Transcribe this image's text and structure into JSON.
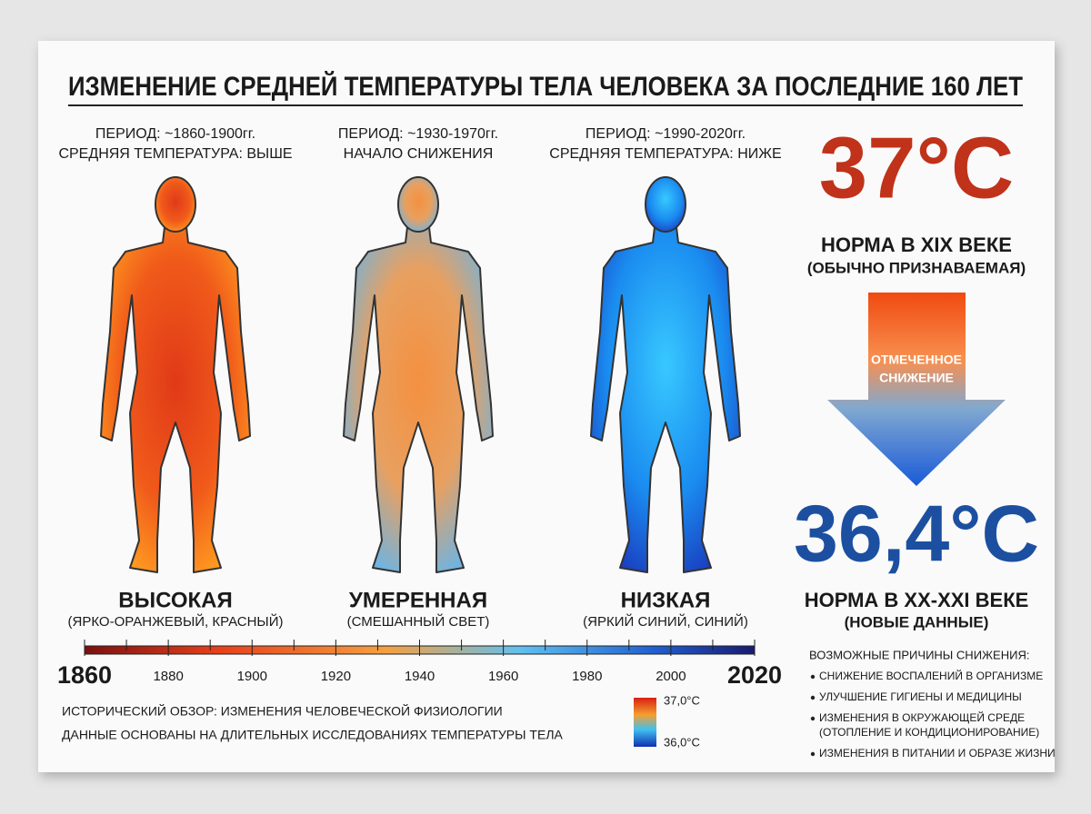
{
  "header": {
    "title": "ИЗМЕНЕНИЕ СРЕДНЕЙ ТЕМПЕРАТУРЫ ТЕЛА ЧЕЛОВЕКА ЗА ПОСЛЕДНИЕ 160 ЛЕТ"
  },
  "panels": [
    {
      "period": "ПЕРИОД: ~1860-1900гг.",
      "note": "СРЕДНЯЯ ТЕМПЕРАТУРА: ВЫШЕ",
      "label": "ВЫСОКАЯ",
      "sublabel": "(ЯРКО-ОРАНЖЕВЫЙ, КРАСНЫЙ)"
    },
    {
      "period": "ПЕРИОД: ~1930-1970гг.",
      "note": "НАЧАЛО СНИЖЕНИЯ",
      "label": "УМЕРЕННАЯ",
      "sublabel": "(СМЕШАННЫЙ СВЕТ)"
    },
    {
      "period": "ПЕРИОД: ~1990-2020гг.",
      "note": "СРЕДНЯЯ ТЕМПЕРАТУРА: НИЖЕ",
      "label": "НИЗКАЯ",
      "sublabel": "(ЯРКИЙ СИНИЙ, СИНИЙ)"
    }
  ],
  "timeline": {
    "years": [
      1860,
      1880,
      1900,
      1920,
      1940,
      1960,
      1980,
      2000,
      2020
    ]
  },
  "footer": {
    "lines": [
      "ИСТОРИЧЕСКИЙ ОБЗОР: ИЗМЕНЕНИЯ ЧЕЛОВЕЧЕСКОЙ ФИЗИОЛОГИИ",
      "ДАННЫЕ ОСНОВАНЫ НА ДЛИТЕЛЬНЫХ ИССЛЕДОВАНИЯХ ТЕМПЕРАТУРЫ ТЕЛА"
    ]
  },
  "legend": {
    "max": "37,0°C",
    "min": "36,0°C"
  },
  "sidebar": {
    "old_temp": "37°C",
    "old_norm": "НОРМА В XIX ВЕКЕ",
    "old_note": "(ОБЫЧНО ПРИЗНАВАЕМАЯ)",
    "arrow_lines": [
      "ОТМЕЧЕННОЕ",
      "СНИЖЕНИЕ"
    ],
    "new_temp": "36,4°C",
    "new_norm": "НОРМА В XX-XXI ВЕКЕ",
    "new_note": "(НОВЫЕ ДАННЫЕ)",
    "causes_title": "ВОЗМОЖНЫЕ ПРИЧИНЫ СНИЖЕНИЯ:",
    "causes": [
      [
        "СНИЖЕНИЕ ВОСПАЛЕНИЙ В ОРГАНИЗМЕ"
      ],
      [
        "УЛУЧШЕНИЕ ГИГИЕНЫ И МЕДИЦИНЫ"
      ],
      [
        "ИЗМЕНЕНИЯ В ОКРУЖАЮЩЕЙ СРЕДЕ",
        "(ОТОПЛЕНИЕ И КОНДИЦИОНИРОВАНИЕ)"
      ],
      [
        "ИЗМЕНЕНИЯ В ПИТАНИИ И ОБРАЗЕ ЖИЗНИ"
      ]
    ]
  }
}
